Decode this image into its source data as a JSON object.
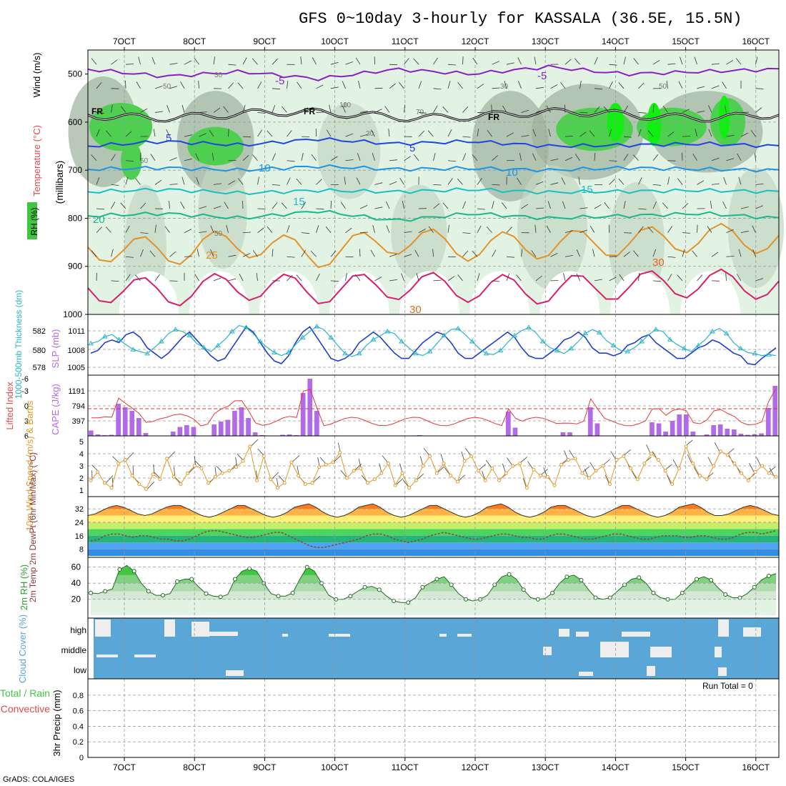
{
  "page": {
    "title": "GFS 0~10day 3-hourly for KASSALA (36.5E, 15.5N)",
    "footer": "GrADS: COLA/IGES",
    "run_total": "Run Total = 0"
  },
  "colors": {
    "rh_light": "#e3f3e3",
    "rh_mid": "#c2d6c2",
    "rh_dark": "#9db09d",
    "rh_green": "#4fcf4f",
    "rh_bright": "#11ee11",
    "temp_purple": "#8a1fc7",
    "temp_blue": "#1f45e0",
    "temp_sky": "#1d95e6",
    "temp_cyan": "#19bfc8",
    "temp_teal": "#19b88a",
    "temp_orange": "#e3922a",
    "temp_deep_orange": "#e36a1a",
    "temp_magenta": "#d81e6c",
    "slp": "#1f3fcf",
    "thickness": "#2ab6c6",
    "cape": "#b36ae8",
    "lifted": "#e23a3a",
    "wind10": "#e39a2a",
    "rh2m_green": "#4fcf4f",
    "cloud_blue": "#5aa6d6",
    "cloud_gap": "#eeeeee"
  },
  "chart_data": [
    {
      "id": "upper-air",
      "type": "heatmap",
      "ylabel_parts": [
        "Wind (m/s)",
        "Temperature (°C)",
        "RH (%)",
        "(millibars)"
      ],
      "yticks": [
        "500",
        "600",
        "700",
        "800",
        "900",
        "1000"
      ],
      "ylim": [
        1000,
        450
      ],
      "xticks": [
        "7OCT",
        "8OCT",
        "9OCT",
        "10OCT",
        "11OCT",
        "12OCT",
        "13OCT",
        "14OCT",
        "15OCT",
        "16OCT"
      ],
      "xlim_days": [
        6.55,
        16.3
      ],
      "freezing_label": "FR",
      "temperature_isotherms": [
        {
          "label": "-5",
          "levels": [
            490,
            505,
            495,
            510,
            490,
            500,
            485,
            500,
            495,
            490
          ]
        },
        {
          "label": "5",
          "levels": [
            650,
            640,
            648,
            635,
            645,
            640,
            650,
            648,
            645,
            650
          ]
        },
        {
          "label": "10",
          "levels": [
            698,
            695,
            700,
            692,
            698,
            696,
            700,
            695,
            698,
            700
          ]
        },
        {
          "label": "15",
          "levels": [
            745,
            740,
            748,
            742,
            745,
            740,
            746,
            744,
            742,
            745
          ]
        },
        {
          "label": "20",
          "levels": [
            795,
            790,
            800,
            785,
            805,
            790,
            800,
            795,
            790,
            800
          ]
        },
        {
          "label": "25",
          "levels": [
            860,
            870,
            850,
            875,
            845,
            860,
            855,
            850,
            840,
            845
          ]
        },
        {
          "label": "30",
          "levels": [
            945,
            955,
            940,
            950,
            940,
            945,
            950,
            940,
            935,
            940
          ]
        }
      ],
      "contour_labels": [
        "-5",
        "5",
        "10",
        "15",
        "20",
        "25",
        "30",
        "30",
        "15",
        "30",
        "10",
        "5",
        "-5",
        "30"
      ],
      "rh_labels": [
        "30",
        "50",
        "10",
        "30",
        "50",
        "50",
        "70",
        "50",
        "30",
        "10"
      ]
    },
    {
      "id": "slp-thickness",
      "type": "line",
      "ylabel_left": "1000-500mb Thickness (dm)",
      "ylabel_right": "SLP (mb)",
      "yticks_left": [
        "582",
        "580",
        "578"
      ],
      "yticks_right": [
        "1011",
        "1008",
        "1005"
      ],
      "series": [
        {
          "name": "SLP",
          "values": [
            1007,
            1007.5,
            1009,
            1009.5,
            1009,
            1010.5,
            1011,
            1010,
            1008,
            1007,
            1006,
            1007,
            1008.5,
            1010,
            1011,
            1009.5,
            1008,
            1006.5,
            1005.5,
            1006,
            1008,
            1010,
            1012,
            1011,
            1009,
            1007,
            1005.5,
            1005,
            1006.5,
            1009,
            1011,
            1012,
            1010,
            1008,
            1006,
            1005.5,
            1006,
            1007,
            1009,
            1010,
            1011,
            1010,
            1008.5,
            1007,
            1006,
            1006,
            1007.5,
            1009,
            1010,
            1011,
            1010.5,
            1009,
            1007,
            1006,
            1006,
            1007,
            1008,
            1009,
            1010,
            1011,
            1010,
            1008,
            1006.5,
            1006,
            1006,
            1007,
            1008,
            1009.5,
            1010,
            1011,
            1010,
            1008,
            1007,
            1007,
            1006.5,
            1007,
            1008.5,
            1009,
            1010,
            1010.5,
            1009,
            1008,
            1007,
            1006,
            1006,
            1007,
            1008,
            1008.5,
            1009.5,
            1009,
            1008,
            1007,
            1006.5,
            1005,
            1004.8,
            1006,
            1007,
            1008
          ]
        },
        {
          "name": "Thickness",
          "values": [
            580.6,
            580.8,
            581.3,
            581.5,
            581,
            580.5,
            580,
            579.8,
            579.6,
            580.2,
            580.8,
            581.6,
            582,
            581.8,
            581.4,
            580.6,
            580.2,
            579.8,
            580.4,
            581,
            581.8,
            582.4,
            582.2,
            581.6,
            580.8,
            580.2,
            579.7,
            579.4,
            579.7,
            580.5,
            581.2,
            581.8,
            582.3,
            582,
            581.2,
            580.4,
            579.6,
            579.3,
            579.6,
            580.4,
            581,
            581.4,
            581.8,
            581.6,
            580.8,
            580.2,
            579.6,
            579.4,
            579.8,
            580.6,
            581.4,
            582,
            582.1,
            581.5,
            580.8,
            580.1,
            579.6,
            579.5,
            579.9,
            580.7,
            581.4,
            581.9,
            582.2,
            581.7,
            580.8,
            580.2,
            579.9,
            579.6,
            580.1,
            580.8,
            581.6,
            582,
            581.7,
            580.9,
            580.4,
            579.9,
            579.8,
            580.2,
            580.8,
            581.5,
            582,
            581.8,
            581,
            580.5,
            580.1,
            579.8,
            580.4,
            581,
            581.8,
            582.1,
            581.6,
            580.7,
            580.1,
            579.7,
            579.6,
            579.4,
            579.5,
            579.4
          ]
        }
      ]
    },
    {
      "id": "cape-li",
      "type": "bar",
      "ylabel_left": "Lifted Index",
      "ylabel_right": "CAPE (J/kg)",
      "yticks_left": [
        "-6",
        "-3",
        "0",
        "3",
        "6"
      ],
      "yticks_right": [
        "1191",
        "794",
        "397"
      ],
      "cape": [
        150,
        40,
        20,
        30,
        900,
        800,
        700,
        500,
        80,
        0,
        0,
        0,
        120,
        250,
        300,
        250,
        0,
        0,
        320,
        400,
        450,
        700,
        800,
        500,
        100,
        20,
        0,
        0,
        30,
        40,
        20,
        1200,
        1600,
        700,
        0,
        0,
        0,
        0,
        0,
        0,
        0,
        0,
        0,
        0,
        0,
        0,
        0,
        0,
        20,
        0,
        0,
        0,
        0,
        0,
        0,
        0,
        0,
        0,
        0,
        0,
        0,
        680,
        230,
        0,
        0,
        0,
        0,
        0,
        0,
        100,
        100,
        0,
        0,
        800,
        350,
        0,
        0,
        0,
        0,
        0,
        0,
        0,
        380,
        350,
        120,
        420,
        600,
        600,
        120,
        0,
        40,
        300,
        320,
        200,
        180,
        60,
        30,
        50,
        70,
        780,
        1400
      ]
    },
    {
      "id": "wind10m",
      "type": "line",
      "ylabel": "10m Wind Speed (m/s) & Barbs",
      "yticks": [
        "5",
        "4",
        "3",
        "2",
        "1"
      ],
      "values": [
        1.8,
        2.5,
        1.6,
        1.2,
        3.2,
        3.5,
        2.2,
        1.5,
        1.1,
        2.3,
        1.9,
        3.6,
        2.1,
        1.5,
        2.4,
        3.0,
        2.8,
        1.6,
        2.1,
        2.4,
        2.6,
        2.9,
        3.4,
        4.6,
        1.8,
        3.8,
        1.9,
        1.2,
        1.6,
        3.3,
        2.2,
        1.5,
        1.6,
        2.9,
        3.1,
        3.3,
        4.1,
        2.0,
        2.6,
        2.8,
        1.6,
        1.9,
        2.4,
        3.2,
        1.4,
        2.4,
        1.2,
        1.8,
        3.0,
        3.8,
        2.4,
        3.2,
        2.2,
        1.7,
        3.4,
        3.8,
        2.6,
        1.8,
        2.8,
        1.8,
        2.4,
        3.0,
        3.2,
        1.2,
        2.7,
        2.2,
        2.1,
        1.4,
        3.1,
        3.5,
        3.6,
        2.4,
        2.0,
        2.6,
        3.0,
        1.5,
        3.5,
        3.8,
        2.8,
        1.9,
        3.2,
        4.0,
        3.5,
        2.6,
        1.5,
        2.8,
        4.6,
        3.2,
        2.2,
        1.9,
        3.0,
        4.2,
        3.9,
        3.2,
        2.4,
        1.8,
        2.5,
        3.0,
        2.4,
        2.1
      ]
    },
    {
      "id": "temp2m",
      "type": "area",
      "ylabel": "2m Temp 2m DewPt (6hr Min/Max) (°C)",
      "yticks": [
        "32",
        "24",
        "16",
        "8"
      ],
      "temp": [
        28,
        29,
        31,
        33,
        34,
        33,
        31,
        29,
        28,
        29,
        31,
        33,
        34,
        34,
        32,
        30,
        28,
        27,
        28,
        30,
        32,
        34,
        34,
        32,
        30,
        28,
        27,
        28,
        30,
        33,
        34,
        35,
        33,
        30,
        28,
        27,
        28,
        30,
        33,
        34,
        35,
        33,
        30,
        28,
        27,
        28,
        30,
        32,
        34,
        34,
        32,
        30,
        28,
        27,
        28,
        30,
        33,
        34,
        35,
        33,
        30,
        28,
        27,
        28,
        30,
        33,
        34,
        34,
        32,
        30,
        28,
        27,
        28,
        30,
        32,
        34,
        34,
        32,
        30,
        28,
        27,
        28,
        30,
        33,
        34,
        35,
        33,
        30,
        28,
        28,
        29,
        31,
        33,
        34,
        33,
        31,
        29,
        28
      ],
      "dew": [
        13,
        13.5,
        16,
        17,
        17,
        16,
        15,
        16,
        16,
        15,
        14,
        14,
        13,
        13,
        14,
        16,
        18,
        19,
        19,
        18,
        17,
        16,
        15,
        15,
        16,
        17,
        18,
        18,
        16,
        14,
        12,
        10,
        9,
        9,
        10,
        11,
        12,
        13,
        14,
        16,
        17,
        17,
        16,
        14,
        13,
        12,
        13,
        14,
        16,
        17,
        18,
        17,
        16,
        15,
        14,
        14,
        15,
        16,
        17,
        17,
        16,
        15,
        15,
        14,
        14,
        16,
        17,
        17,
        16,
        15,
        14,
        14,
        15,
        16,
        17,
        17,
        16,
        15,
        14,
        14,
        15,
        16,
        16,
        16,
        15,
        15,
        16,
        16,
        15,
        14,
        14,
        15,
        17,
        18,
        18,
        17,
        18,
        19
      ]
    },
    {
      "id": "rh2m",
      "type": "area",
      "ylabel": "2m RH (%)",
      "yticks": [
        "60",
        "40",
        "20"
      ],
      "values": [
        28,
        27,
        30,
        33,
        57,
        62,
        55,
        40,
        30,
        25,
        25,
        27,
        42,
        45,
        45,
        35,
        27,
        24,
        23,
        26,
        45,
        55,
        58,
        55,
        40,
        27,
        24,
        24,
        28,
        45,
        60,
        55,
        40,
        25,
        20,
        20,
        24,
        30,
        35,
        36,
        32,
        24,
        18,
        16,
        16,
        22,
        35,
        40,
        45,
        48,
        38,
        27,
        20,
        18,
        20,
        25,
        38,
        48,
        51,
        45,
        32,
        22,
        20,
        21,
        28,
        40,
        48,
        50,
        44,
        32,
        22,
        20,
        22,
        30,
        38,
        45,
        47,
        40,
        28,
        22,
        20,
        20,
        28,
        37,
        45,
        48,
        44,
        34,
        26,
        22,
        22,
        27,
        35,
        44,
        49,
        52
      ]
    },
    {
      "id": "cloud",
      "type": "bar",
      "ylabel": "Cloud Cover (%)",
      "categories": [
        "high",
        "middle",
        "low"
      ],
      "high": [
        0,
        0,
        0,
        3,
        7,
        7,
        4,
        2,
        0,
        0,
        0,
        0,
        0,
        0,
        7,
        4,
        0,
        0,
        0,
        0,
        0,
        0,
        0,
        0,
        0,
        0,
        0,
        0,
        0,
        0,
        0,
        0,
        0,
        0,
        0,
        0,
        0,
        0,
        0,
        0,
        0,
        0,
        0,
        0,
        0,
        0,
        0,
        0,
        0,
        0,
        0,
        0,
        0,
        0,
        0,
        0,
        0,
        0,
        0,
        0,
        0,
        0,
        0,
        0,
        0,
        0,
        0,
        0,
        0,
        0,
        0,
        0,
        0,
        0,
        0,
        0,
        0,
        0,
        0,
        0,
        0,
        0,
        0,
        0,
        0,
        0,
        0,
        0,
        0,
        0,
        0,
        0,
        0,
        0,
        8,
        6,
        4,
        0
      ],
      "middle": [
        0,
        0,
        0,
        0,
        0,
        0,
        0,
        0,
        0,
        0,
        0,
        0,
        0,
        0,
        0,
        0,
        0,
        0,
        0,
        0,
        0,
        0,
        0,
        0,
        0,
        0,
        0,
        0,
        0,
        0,
        0,
        0,
        0,
        0,
        0,
        0,
        0,
        0,
        0,
        0,
        0,
        0,
        0,
        0,
        0,
        0,
        0,
        0,
        0,
        0,
        0,
        0,
        0,
        0,
        0,
        0,
        0,
        0,
        0,
        0,
        0,
        0,
        0,
        0,
        0,
        0,
        0,
        0,
        0,
        0,
        0,
        0,
        0,
        0,
        0,
        0,
        0,
        0,
        0,
        0,
        0,
        0,
        0,
        0,
        0,
        0,
        0,
        0,
        0,
        0,
        0,
        0,
        0,
        0,
        0,
        0,
        0,
        0
      ],
      "low": [
        0,
        0,
        0,
        0,
        0,
        0,
        0,
        0,
        0,
        0,
        0,
        0,
        0,
        0,
        0,
        0,
        0,
        0,
        0,
        0,
        0,
        0,
        0,
        0,
        0,
        0,
        0,
        0,
        0,
        0,
        0,
        0,
        0,
        0,
        0,
        0,
        0,
        0,
        0,
        0,
        0,
        0,
        0,
        0,
        0,
        0,
        0,
        0,
        0,
        0,
        0,
        0,
        0,
        0,
        0,
        0,
        0,
        0,
        0,
        0,
        0,
        0,
        0,
        0,
        0,
        0,
        0,
        0,
        0,
        0,
        0,
        0,
        0,
        0,
        0,
        0,
        0,
        0,
        0,
        0,
        0,
        0,
        0,
        0,
        0,
        0,
        0,
        0,
        0,
        0,
        0,
        0,
        0,
        0,
        0,
        0,
        0,
        0
      ]
    },
    {
      "id": "precip",
      "type": "bar",
      "ylabel_left": "Total / Rain",
      "ylabel_left2": "Convective",
      "ylabel": "3hr Precip (mm)",
      "yticks": [
        "0.8",
        "0.6",
        "0.4",
        "0.2",
        "0"
      ],
      "values": []
    }
  ]
}
